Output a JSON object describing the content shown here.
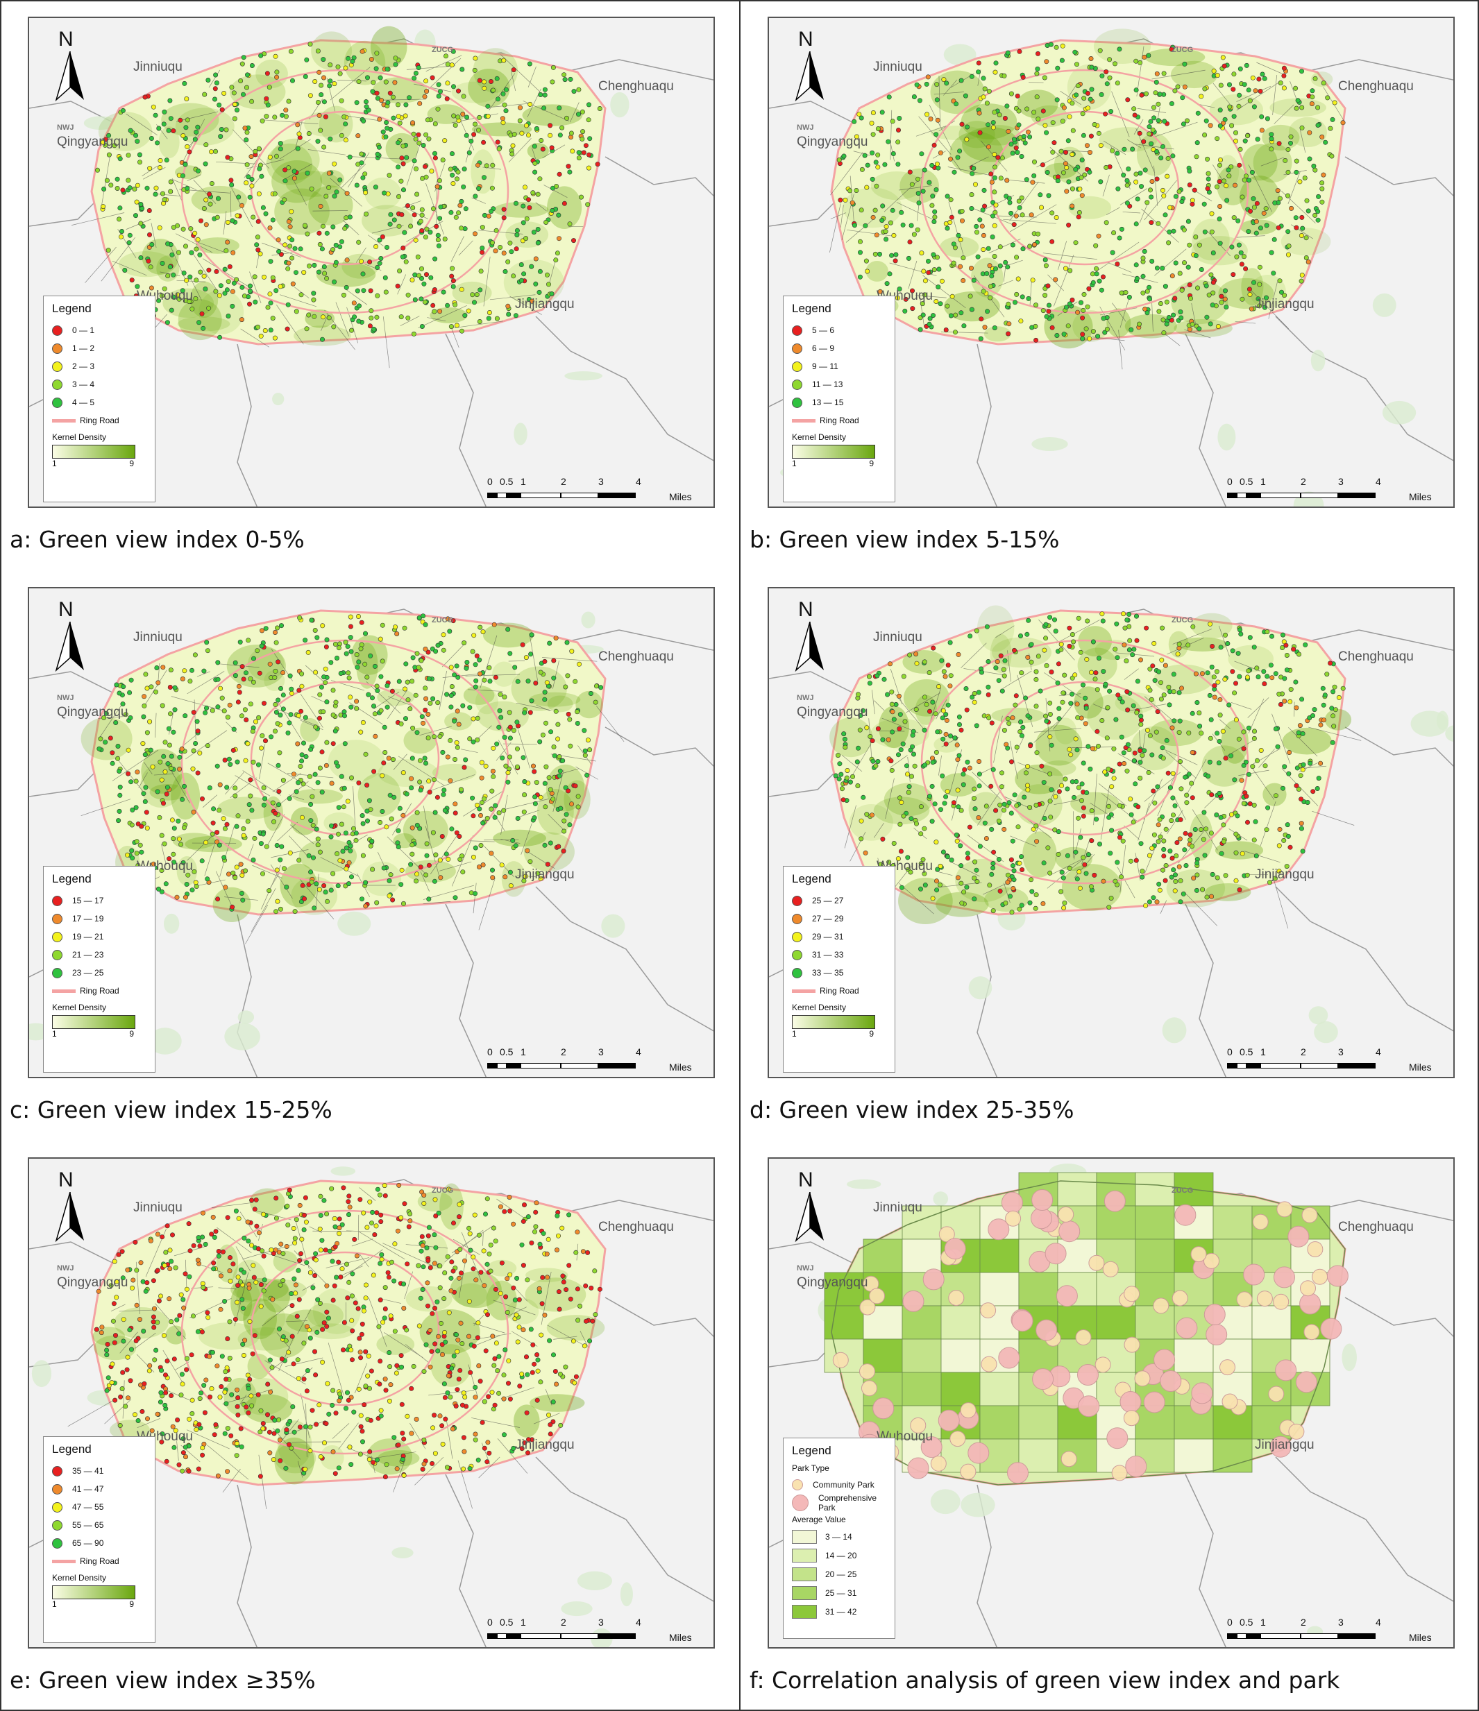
{
  "panels": [
    {
      "caption": "a: Green view index 0-5%",
      "legend_title": "Legend",
      "classes": [
        "0 — 1",
        "1 — 2",
        "2 — 3",
        "3 — 4",
        "4 — 5"
      ],
      "ring_label": "Ring Road",
      "kd_title": "Kernel Density",
      "kd_min": "1",
      "kd_max": "9"
    },
    {
      "caption": "b: Green view index 5-15%",
      "legend_title": "Legend",
      "classes": [
        "5 — 6",
        "6 — 9",
        "9 — 11",
        "11 — 13",
        "13 — 15"
      ],
      "ring_label": "Ring Road",
      "kd_title": "Kernel Density",
      "kd_min": "1",
      "kd_max": "9"
    },
    {
      "caption": "c: Green view index 15-25%",
      "legend_title": "Legend",
      "classes": [
        "15 — 17",
        "17 — 19",
        "19 — 21",
        "21 — 23",
        "23 — 25"
      ],
      "ring_label": "Ring Road",
      "kd_title": "Kernel Density",
      "kd_min": "1",
      "kd_max": "9"
    },
    {
      "caption": "d: Green view index 25-35%",
      "legend_title": "Legend",
      "classes": [
        "25 — 27",
        "27 — 29",
        "29 — 31",
        "31 — 33",
        "33 — 35"
      ],
      "ring_label": "Ring Road",
      "kd_title": "Kernel Density",
      "kd_min": "1",
      "kd_max": "9"
    },
    {
      "caption": "e: Green view index ≥35%",
      "legend_title": "Legend",
      "classes": [
        "35 — 41",
        "41 — 47",
        "47 — 55",
        "55 — 65",
        "65 — 90"
      ],
      "ring_label": "Ring Road",
      "kd_title": "Kernel Density",
      "kd_min": "1",
      "kd_max": "9"
    },
    {
      "caption": "f: Correlation analysis of green view index and park",
      "legend_title": "Legend",
      "park_type_title": "Park Type",
      "park_types": [
        "Community Park",
        "Comprehensive Park"
      ],
      "avg_title": "Average Value",
      "avg_classes": [
        "3 — 14",
        "14 — 20",
        "20 — 25",
        "25 — 31",
        "31 — 42"
      ]
    }
  ],
  "districts": {
    "nw": "Jinniuqu",
    "ne": "Chenghuaqu",
    "w": "Qingyangqu",
    "sw": "Wuhouqu",
    "se": "Jinjiangqu",
    "tag_a": "ZUCG",
    "tag_b": "NWJ"
  },
  "north_label": "N",
  "scale": {
    "ticks": [
      "0",
      "0.5",
      "1",
      "2",
      "3",
      "4"
    ],
    "unit": "Miles"
  },
  "colors": {
    "class_dots": [
      "#e82020",
      "#ef8a2c",
      "#f3f21c",
      "#8fd82f",
      "#2fc23f"
    ],
    "avg_fills": [
      "#f2f7d6",
      "#dcefb0",
      "#c3e38a",
      "#a8d664",
      "#8cc83a"
    ],
    "ring_road": "#f4a3a3",
    "kd_low": "#fbfde6",
    "kd_high": "#6aa70f",
    "community_park": "#f9e2b0",
    "comprehensive_park": "#f4b8b8"
  }
}
